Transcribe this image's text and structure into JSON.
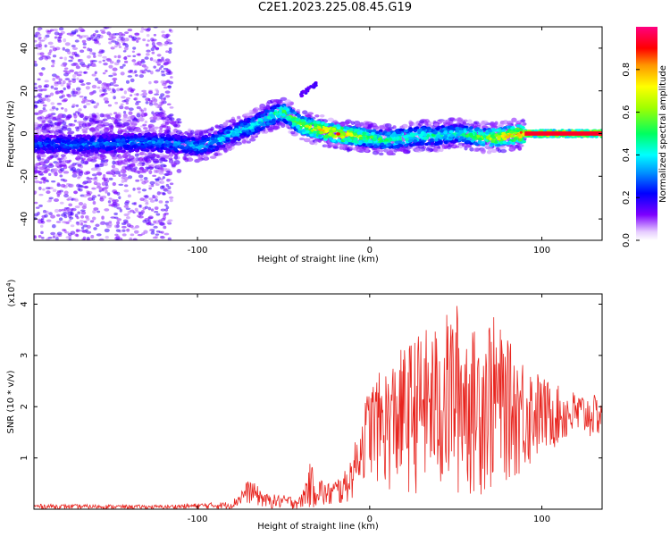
{
  "title": "C2E1.2023.225.08.45.G19",
  "top_chart": {
    "ylabel": "Frequency (Hz)",
    "xlabel": "Height of straight line (km)",
    "colorbar_label": "Normalized spectral amplitude",
    "colorbar_ticks": [
      "0.0",
      "0.2",
      "0.4",
      "0.6",
      "0.8"
    ],
    "x_ticks": [
      "-100",
      "0",
      "100"
    ],
    "y_ticks": [
      "40",
      "20",
      "0",
      "-20",
      "-40"
    ]
  },
  "bottom_chart": {
    "ylabel": "SNR (10 * v/v)",
    "xlabel": "Height of straight line (km)",
    "scale_base": "(x10",
    "scale_exp": "4",
    "scale_close": ")",
    "x_ticks": [
      "-100",
      "0",
      "100"
    ],
    "y_ticks": [
      "1",
      "2",
      "3",
      "4"
    ]
  },
  "chart_data": [
    {
      "type": "heatmap",
      "xlim": [
        -195,
        135
      ],
      "ylim": [
        -50,
        50
      ],
      "clim": [
        0,
        1
      ],
      "colormap": "rainbow (0 white-violet → 1 red-magenta)",
      "ridge": {
        "x": [
          -195,
          -160,
          -130,
          -110,
          -100,
          -90,
          -80,
          -70,
          -60,
          -55,
          -50,
          -45,
          -40,
          -30,
          -20,
          -10,
          0,
          10,
          20,
          30,
          40,
          50,
          60,
          70,
          80,
          90,
          100,
          110,
          120,
          135
        ],
        "y": [
          -5,
          -5,
          -4,
          -5,
          -6,
          -4,
          0,
          3,
          7,
          9,
          10,
          7,
          4,
          2,
          0,
          -1,
          -2,
          -3,
          -2,
          -1,
          -1,
          0,
          -1,
          -2,
          -1,
          0,
          0,
          0,
          0,
          0
        ]
      },
      "ridge_amplitude": {
        "x": [
          -195,
          -110,
          -60,
          -30,
          -20,
          0,
          50,
          90,
          135
        ],
        "v": [
          0.3,
          0.35,
          0.45,
          0.75,
          0.85,
          0.55,
          0.45,
          0.9,
          0.95
        ]
      }
    },
    {
      "type": "line",
      "xlim": [
        -195,
        135
      ],
      "ylim": [
        0,
        4.2
      ],
      "color": "#e8251f",
      "envelope": {
        "x": [
          -195,
          -120,
          -80,
          -70,
          -60,
          -40,
          -35,
          -25,
          -15,
          -10,
          -5,
          0,
          10,
          20,
          30,
          40,
          50,
          60,
          70,
          80,
          90,
          100,
          110,
          120,
          135
        ],
        "lo": [
          0.0,
          0.0,
          0.0,
          0.1,
          0.0,
          0.0,
          0.0,
          0.0,
          0.05,
          0.2,
          0.5,
          0.6,
          0.3,
          0.2,
          0.3,
          0.1,
          0.1,
          0.2,
          0.2,
          0.5,
          0.6,
          1.0,
          1.2,
          1.3,
          1.4
        ],
        "hi": [
          0.1,
          0.08,
          0.15,
          0.6,
          0.3,
          0.25,
          0.9,
          0.5,
          0.7,
          1.1,
          1.8,
          2.5,
          2.8,
          3.2,
          3.5,
          3.6,
          4.1,
          3.5,
          3.9,
          3.3,
          3.0,
          2.6,
          2.4,
          2.3,
          2.2
        ]
      }
    }
  ]
}
